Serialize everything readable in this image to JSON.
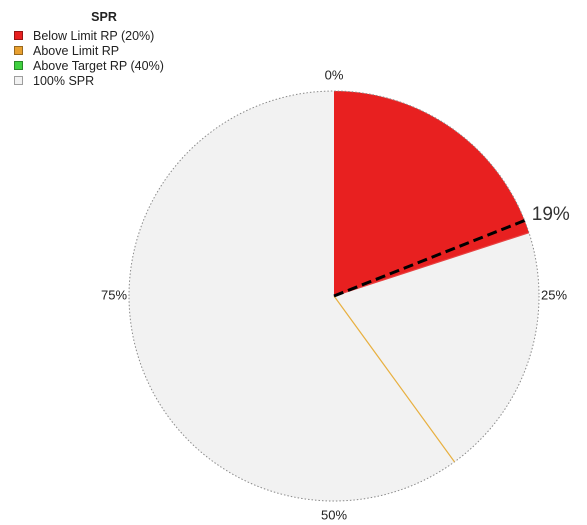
{
  "chart_data": {
    "type": "pie",
    "title": "SPR",
    "legend_position": "top-left",
    "legend": [
      {
        "label": "Below Limit RP (20%)",
        "color": "#e82020"
      },
      {
        "label": "Above Limit RP",
        "color": "#e8a030"
      },
      {
        "label": "Above Target RP (40%)",
        "color": "#40d040"
      },
      {
        "label": "100% SPR",
        "color": "#f2f2f2"
      }
    ],
    "slices": [
      {
        "name": "Below Limit RP (20%)",
        "value": 20,
        "color": "#e82020"
      },
      {
        "name": "100% SPR",
        "value": 80,
        "color": "#f2f2f2"
      }
    ],
    "reference_lines": [
      {
        "value": 20,
        "color": "#e84040"
      },
      {
        "value": 40,
        "color": "#e8b040"
      }
    ],
    "marker": {
      "value": 19,
      "label": "19%",
      "style": "dashed",
      "color": "#000000"
    },
    "ticks": [
      {
        "value": 0,
        "label": "0%"
      },
      {
        "value": 25,
        "label": "25%"
      },
      {
        "value": 50,
        "label": "50%"
      },
      {
        "value": 75,
        "label": "75%"
      }
    ]
  }
}
